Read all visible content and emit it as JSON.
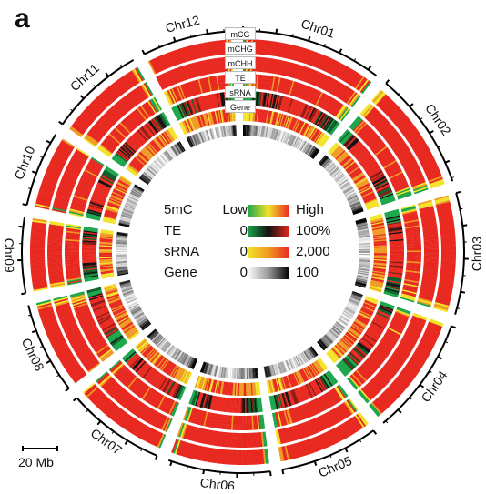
{
  "panel_letter": "a",
  "scale_bar": {
    "label": "20 Mb",
    "value_mb": 20
  },
  "track_labels": [
    "mCG",
    "mCHG",
    "mCHH",
    "TE",
    "sRNA",
    "Gene"
  ],
  "chromosomes": [
    {
      "name": "Chr01",
      "length_mb": 43
    },
    {
      "name": "Chr02",
      "length_mb": 36
    },
    {
      "name": "Chr03",
      "length_mb": 37
    },
    {
      "name": "Chr04",
      "length_mb": 36
    },
    {
      "name": "Chr05",
      "length_mb": 30
    },
    {
      "name": "Chr06",
      "length_mb": 31
    },
    {
      "name": "Chr07",
      "length_mb": 30
    },
    {
      "name": "Chr08",
      "length_mb": 28
    },
    {
      "name": "Chr09",
      "length_mb": 23
    },
    {
      "name": "Chr10",
      "length_mb": 23
    },
    {
      "name": "Chr11",
      "length_mb": 29
    },
    {
      "name": "Chr12",
      "length_mb": 27
    }
  ],
  "legend": [
    {
      "label": "5mC",
      "low": "Low",
      "high": "High",
      "gradient": [
        "#1aa64a",
        "#f3e32a",
        "#e8281f"
      ]
    },
    {
      "label": "TE",
      "low": "0",
      "high": "100%",
      "gradient": [
        "#1aa64a",
        "#111111",
        "#e8281f"
      ]
    },
    {
      "label": "sRNA",
      "low": "0",
      "high": "2,000",
      "gradient": [
        "#f3e32a",
        "#f09a22",
        "#e8281f"
      ]
    },
    {
      "label": "Gene",
      "low": "0",
      "high": "100",
      "gradient": [
        "#ffffff",
        "#999999",
        "#000000"
      ]
    }
  ],
  "colors": {
    "red": "#e8281f",
    "orange": "#f09a22",
    "yellow": "#f3e32a",
    "green": "#1aa64a",
    "black": "#111111"
  }
}
